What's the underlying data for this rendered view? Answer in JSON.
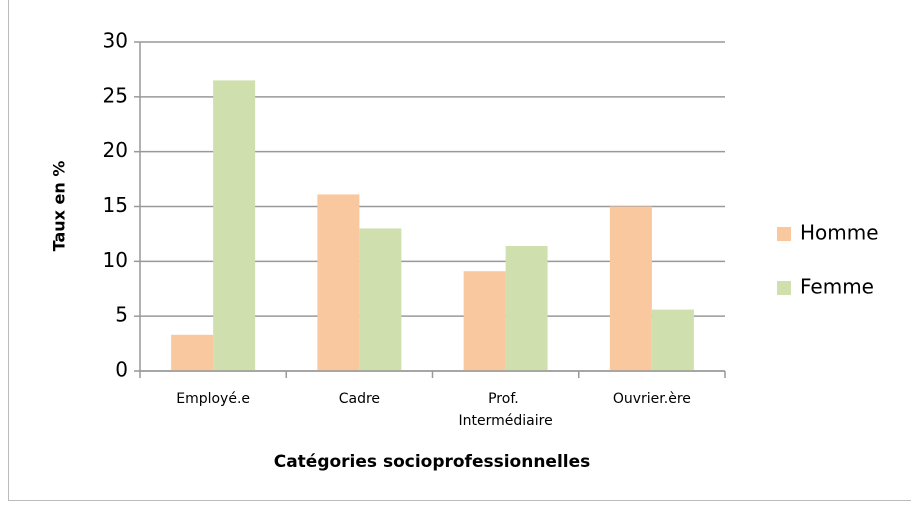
{
  "chart_data": {
    "type": "bar",
    "x_label": "Catégories socioprofessionnelles",
    "y_label": "Taux en %",
    "categories": [
      "Employé.e",
      "Cadre",
      "Prof. Intermédiaire",
      "Ouvrier.ère"
    ],
    "series": [
      {
        "name": "Homme",
        "color": "#fac89e",
        "values": [
          3.3,
          16.1,
          9.1,
          15.0
        ]
      },
      {
        "name": "Femme",
        "color": "#d0dfae",
        "values": [
          26.5,
          13.0,
          11.4,
          5.6
        ]
      }
    ],
    "ylim": [
      0,
      30
    ],
    "yticks": [
      0,
      5,
      10,
      15,
      20,
      25,
      30
    ],
    "grid": true,
    "legend": "right"
  }
}
